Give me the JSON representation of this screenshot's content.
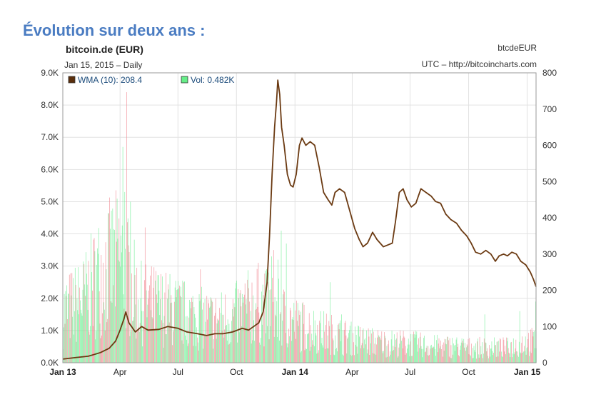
{
  "heading": "Évolution sur deux ans :",
  "chart_data": {
    "type": "line",
    "title": "bitcoin.de (EUR)",
    "subtitle": "Jan 15, 2015 – Daily",
    "symbol": "btcdeEUR",
    "source": "UTC – http://bitcoincharts.com",
    "x_ticks": [
      "Jan 13",
      "Apr",
      "Jul",
      "Oct",
      "Jan 14",
      "Apr",
      "Jul",
      "Oct",
      "Jan 15"
    ],
    "x_ticks_bold": [
      "Jan 13",
      "Jan 14",
      "Jan 15"
    ],
    "x_range": [
      "2013-01-01",
      "2015-01-15"
    ],
    "y_left": {
      "label": "",
      "ticks": [
        "0.0K",
        "1.0K",
        "2.0K",
        "3.0K",
        "4.0K",
        "5.0K",
        "6.0K",
        "7.0K",
        "8.0K",
        "9.0K"
      ],
      "range": [
        0,
        9000
      ]
    },
    "y_right": {
      "label": "",
      "ticks": [
        "0",
        "100",
        "200",
        "300",
        "400",
        "500",
        "600",
        "700",
        "800"
      ],
      "range": [
        0,
        800
      ]
    },
    "grid": true,
    "legend": {
      "placement": "top-left",
      "entries": [
        {
          "label": "WMA (10): 208.4",
          "color": "#5a2e0c"
        },
        {
          "label": "Vol: 0.482K",
          "color": "#66ee88"
        }
      ]
    },
    "series": [
      {
        "name": "WMA (10)",
        "axis": "right",
        "color": "#6b3a12",
        "x": [
          "2013-01-01",
          "2013-01-20",
          "2013-02-10",
          "2013-03-01",
          "2013-03-15",
          "2013-03-25",
          "2013-04-01",
          "2013-04-07",
          "2013-04-10",
          "2013-04-15",
          "2013-04-25",
          "2013-05-05",
          "2013-05-15",
          "2013-06-01",
          "2013-06-15",
          "2013-07-01",
          "2013-07-15",
          "2013-08-01",
          "2013-08-15",
          "2013-08-28",
          "2013-09-10",
          "2013-09-25",
          "2013-10-10",
          "2013-10-20",
          "2013-10-28",
          "2013-11-05",
          "2013-11-12",
          "2013-11-18",
          "2013-11-22",
          "2013-11-26",
          "2013-11-30",
          "2013-12-03",
          "2013-12-05",
          "2013-12-08",
          "2013-12-11",
          "2013-12-15",
          "2013-12-20",
          "2013-12-25",
          "2013-12-29",
          "2014-01-03",
          "2014-01-08",
          "2014-01-12",
          "2014-01-18",
          "2014-01-25",
          "2014-02-01",
          "2014-02-08",
          "2014-02-15",
          "2014-02-22",
          "2014-02-28",
          "2014-03-05",
          "2014-03-12",
          "2014-03-20",
          "2014-03-28",
          "2014-04-05",
          "2014-04-12",
          "2014-04-18",
          "2014-04-25",
          "2014-05-03",
          "2014-05-10",
          "2014-05-20",
          "2014-05-27",
          "2014-06-03",
          "2014-06-08",
          "2014-06-14",
          "2014-06-20",
          "2014-06-26",
          "2014-07-03",
          "2014-07-10",
          "2014-07-18",
          "2014-07-26",
          "2014-08-03",
          "2014-08-10",
          "2014-08-18",
          "2014-08-26",
          "2014-09-03",
          "2014-09-12",
          "2014-09-20",
          "2014-09-28",
          "2014-10-05",
          "2014-10-12",
          "2014-10-20",
          "2014-10-28",
          "2014-11-05",
          "2014-11-12",
          "2014-11-18",
          "2014-11-25",
          "2014-12-01",
          "2014-12-08",
          "2014-12-15",
          "2014-12-22",
          "2014-12-30",
          "2015-01-06",
          "2015-01-11",
          "2015-01-15"
        ],
        "values": [
          10,
          14,
          18,
          28,
          40,
          60,
          90,
          120,
          140,
          110,
          85,
          100,
          90,
          92,
          100,
          95,
          85,
          80,
          75,
          80,
          80,
          85,
          95,
          90,
          100,
          110,
          140,
          220,
          350,
          520,
          650,
          720,
          780,
          740,
          650,
          600,
          520,
          490,
          485,
          520,
          600,
          620,
          600,
          610,
          600,
          540,
          470,
          450,
          435,
          470,
          480,
          470,
          420,
          370,
          340,
          320,
          330,
          360,
          340,
          320,
          325,
          330,
          390,
          470,
          480,
          450,
          430,
          440,
          480,
          470,
          460,
          445,
          440,
          410,
          395,
          385,
          365,
          350,
          330,
          305,
          300,
          310,
          300,
          280,
          295,
          300,
          295,
          305,
          300,
          280,
          270,
          250,
          230,
          210
        ]
      },
      {
        "name": "Vol",
        "axis": "left",
        "type": "bar",
        "color_up": "#77ee99",
        "color_down": "#f28a94",
        "x": [
          "2013-01-01",
          "2013-02-01",
          "2013-03-01",
          "2013-04-01",
          "2013-05-01",
          "2013-06-01",
          "2013-07-01",
          "2013-08-01",
          "2013-09-01",
          "2013-10-01",
          "2013-11-01",
          "2013-12-01",
          "2014-01-01",
          "2014-02-01",
          "2014-03-01",
          "2014-04-01",
          "2014-05-01",
          "2014-06-01",
          "2014-07-01",
          "2014-08-01",
          "2014-09-01",
          "2014-10-01",
          "2014-11-01",
          "2014-12-01",
          "2015-01-01"
        ],
        "values": [
          1700,
          2100,
          3000,
          3500,
          2000,
          1900,
          1700,
          1500,
          1400,
          1600,
          2000,
          1700,
          1300,
          1100,
          950,
          800,
          700,
          650,
          650,
          550,
          550,
          500,
          500,
          500,
          700
        ],
        "peaks": [
          {
            "x": "2013-04-05",
            "value": 6700
          },
          {
            "x": "2013-04-08",
            "value": 5300
          },
          {
            "x": "2013-04-11",
            "value": 8400
          },
          {
            "x": "2013-04-17",
            "value": 5000
          },
          {
            "x": "2013-05-10",
            "value": 4200
          },
          {
            "x": "2013-06-20",
            "value": 2100
          },
          {
            "x": "2013-08-05",
            "value": 2900
          },
          {
            "x": "2013-11-12",
            "value": 2100
          },
          {
            "x": "2013-11-20",
            "value": 2800
          },
          {
            "x": "2013-11-25",
            "value": 3300
          },
          {
            "x": "2013-11-28",
            "value": 3500
          },
          {
            "x": "2013-12-05",
            "value": 3200
          },
          {
            "x": "2013-12-10",
            "value": 4100
          },
          {
            "x": "2013-12-18",
            "value": 3700
          },
          {
            "x": "2014-02-25",
            "value": 2500
          },
          {
            "x": "2014-03-15",
            "value": 1500
          },
          {
            "x": "2014-10-26",
            "value": 1500
          },
          {
            "x": "2014-12-20",
            "value": 1600
          },
          {
            "x": "2015-01-14",
            "value": 1900
          }
        ]
      }
    ]
  }
}
